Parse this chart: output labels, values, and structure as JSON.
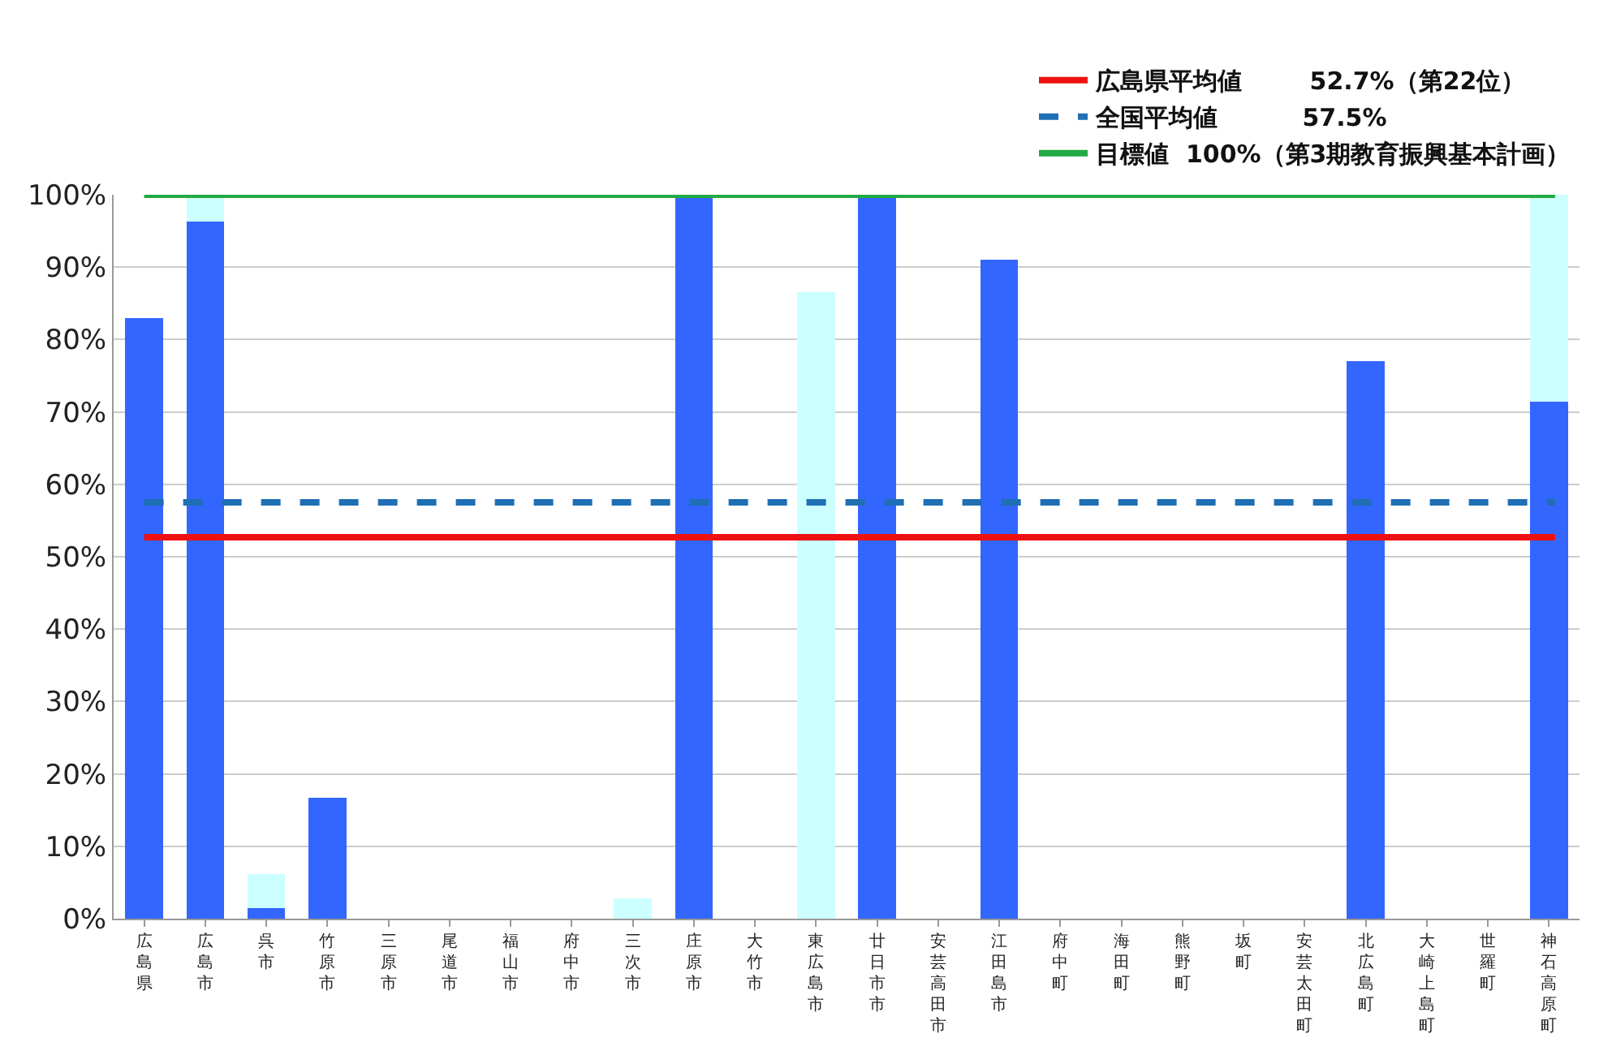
{
  "chart_data": {
    "type": "bar",
    "stacked": true,
    "categories": [
      "広島県",
      "広島市",
      "呉市",
      "竹原市",
      "三原市",
      "尾道市",
      "福山市",
      "府中市",
      "三次市",
      "庄原市",
      "大竹市",
      "東広島市",
      "廿日市市",
      "安芸高田市",
      "江田島市",
      "府中町",
      "海田町",
      "熊野町",
      "坂町",
      "安芸太田町",
      "北広島町",
      "大崎上島町",
      "世羅町",
      "神石高原町"
    ],
    "series": [
      {
        "color": "#3366ff",
        "values": [
          83.0,
          96.3,
          1.5,
          16.7,
          null,
          null,
          null,
          null,
          null,
          100,
          null,
          null,
          100,
          null,
          91.0,
          null,
          null,
          null,
          null,
          null,
          77.0,
          null,
          null,
          71.4
        ]
      },
      {
        "color": "#ccffff",
        "values": [
          null,
          3.7,
          4.7,
          null,
          null,
          null,
          null,
          null,
          2.8,
          null,
          null,
          86.6,
          null,
          null,
          null,
          null,
          null,
          null,
          null,
          null,
          null,
          null,
          null,
          28.6
        ]
      }
    ],
    "legend": "top right",
    "ylim": [
      0,
      100
    ],
    "yticks": [
      {
        "value": 0,
        "label": "0%"
      },
      {
        "value": 10,
        "label": "10%"
      },
      {
        "value": 20,
        "label": "20%"
      },
      {
        "value": 30,
        "label": "30%"
      },
      {
        "value": 40,
        "label": "40%"
      },
      {
        "value": 50,
        "label": "50%"
      },
      {
        "value": 60,
        "label": "60%"
      },
      {
        "value": 70,
        "label": "70%"
      },
      {
        "value": 80,
        "label": "80%"
      },
      {
        "value": 90,
        "label": "90%"
      },
      {
        "value": 100,
        "label": "100%"
      }
    ],
    "grid": "y",
    "ref_lines": [
      {
        "axis": "y",
        "value": 100,
        "label": "目標値  100%（第3期教育振興基本計画）",
        "color": "#22aa44",
        "line_style": "solid"
      },
      {
        "axis": "y",
        "value": 57.5,
        "label": "全国平均値          57.5%",
        "color": "#1f6fb4",
        "line_style": "dashed"
      },
      {
        "axis": "y",
        "value": 52.7,
        "label": "広島県平均値        52.7%（第22位）",
        "color": "#ee1111",
        "line_style": "solid"
      }
    ]
  }
}
